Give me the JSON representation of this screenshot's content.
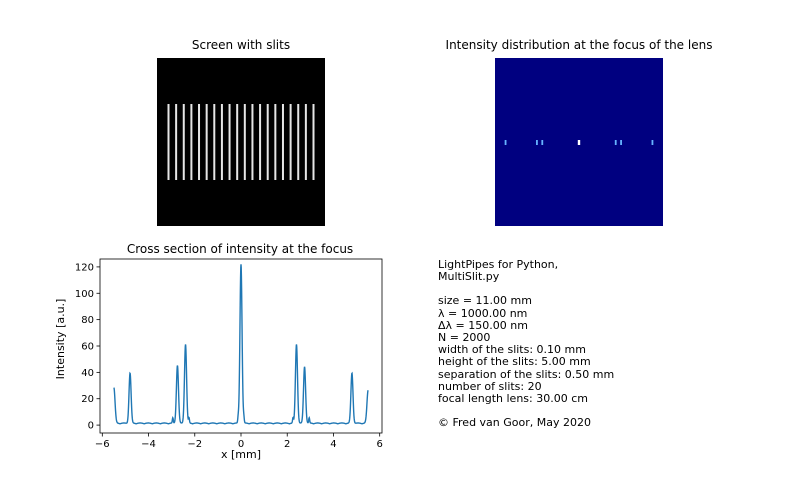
{
  "panels": {
    "slits": {
      "title": "Screen with slits",
      "slit_count": 20
    },
    "focus": {
      "title": "Intensity distribution at the focus of the lens",
      "background": "#000080"
    }
  },
  "info": {
    "lines": [
      "LightPipes for Python,",
      "MultiSlit.py",
      "",
      "size = 11.00 mm",
      "λ = 1000.00 nm",
      "Δλ = 150.00 nm",
      "N = 2000",
      "width of the slits: 0.10 mm",
      "height of the slits: 5.00 mm",
      "separation of the slits: 0.50 mm",
      "number of slits: 20",
      "focal length lens: 30.00 cm",
      "",
      "© Fred van Goor, May 2020"
    ]
  },
  "chart_data": {
    "type": "line",
    "title": "Cross section of intensity at the focus",
    "xlabel": "x [mm]",
    "ylabel": "Intensity [a.u.]",
    "xlim": [
      -6.1,
      6.1
    ],
    "ylim": [
      -6,
      126
    ],
    "xticks": [
      -6,
      -4,
      -2,
      0,
      2,
      4,
      6
    ],
    "xtick_labels": [
      "−6",
      "−4",
      "−2",
      "0",
      "2",
      "4",
      "6"
    ],
    "yticks": [
      0,
      20,
      40,
      60,
      80,
      100,
      120
    ],
    "ytick_labels": [
      "0",
      "20",
      "40",
      "60",
      "80",
      "100",
      "120"
    ],
    "grid": false,
    "series": [
      {
        "color": "#1f77b4",
        "peaks": [
          {
            "x": -5.5,
            "y": 28
          },
          {
            "x": -4.8,
            "y": 39
          },
          {
            "x": -2.75,
            "y": 45
          },
          {
            "x": -2.4,
            "y": 61
          },
          {
            "x": 0.0,
            "y": 122
          },
          {
            "x": 2.4,
            "y": 61
          },
          {
            "x": 2.75,
            "y": 44
          },
          {
            "x": 4.8,
            "y": 39
          },
          {
            "x": 5.5,
            "y": 26
          }
        ],
        "baseline": 1
      }
    ]
  }
}
